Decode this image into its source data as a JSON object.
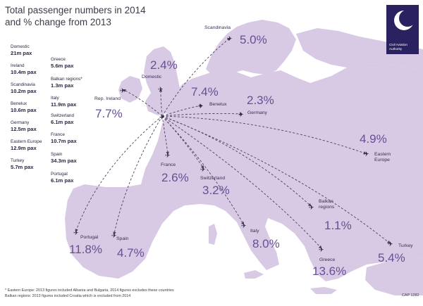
{
  "title": {
    "line1": "Total passenger numbers in 2014",
    "line2": "and % change from 2013"
  },
  "logo": {
    "line1": "Civil Aviation",
    "line2": "Authority",
    "icon": "caa-crescent-logo"
  },
  "colors": {
    "land": "#d8c9e4",
    "background": "#ffffff",
    "accent": "#6a4e96",
    "logo_bg": "#2a2260",
    "route": "#4b3f60"
  },
  "stats_left": [
    {
      "label": "Domestic",
      "value": "21m pax"
    },
    {
      "label": "Ireland",
      "value": "10.4m pax"
    },
    {
      "label": "Scandinavia",
      "value": "10.2m pax"
    },
    {
      "label": "Benelux",
      "value": "10.6m pax"
    },
    {
      "label": "Germany",
      "value": "12.5m pax"
    },
    {
      "label": "Eastern Europe",
      "value": "12.9m pax"
    },
    {
      "label": "Turkey",
      "value": "5.7m pax"
    }
  ],
  "stats_right": [
    {
      "label": "Greece",
      "value": "5.6m pax"
    },
    {
      "label": "Balkan regions*",
      "value": "1.3m pax"
    },
    {
      "label": "Italy",
      "value": "11.9m pax"
    },
    {
      "label": "Switzerland",
      "value": "6.1m pax"
    },
    {
      "label": "France",
      "value": "10.7m pax"
    },
    {
      "label": "Spain",
      "value": "34.3m pax"
    },
    {
      "label": "Portugal",
      "value": "6.1m pax"
    }
  ],
  "destinations": [
    {
      "name": "Scandinavia",
      "change": "5.0%"
    },
    {
      "name": "Domestic",
      "change": "2.4%"
    },
    {
      "name": "Rep. Ireland",
      "change": "7.7%"
    },
    {
      "name": "Benelux",
      "change": "7.4%"
    },
    {
      "name": "Germany",
      "change": "2.3%"
    },
    {
      "name": "Eastern Europe",
      "change": "4.9%"
    },
    {
      "name": "France",
      "change": "2.6%"
    },
    {
      "name": "Switzerland",
      "change": "3.2%"
    },
    {
      "name": "Balkan regions",
      "change": "1.1%"
    },
    {
      "name": "Italy",
      "change": "8.0%"
    },
    {
      "name": "Portugal",
      "change": "11.8%"
    },
    {
      "name": "Spain",
      "change": "4.7%"
    },
    {
      "name": "Greece",
      "change": "13.6%"
    },
    {
      "name": "Turkey",
      "change": "5.4%"
    }
  ],
  "footnotes": [
    "* Eastern Europe: 2013 figures included Albania and Bulgaria, 2014 figures excludes these countries",
    "Balkan regions: 2013 figures included Croatia which is excluded from 2014"
  ],
  "cap_code": "CAP 1282"
}
